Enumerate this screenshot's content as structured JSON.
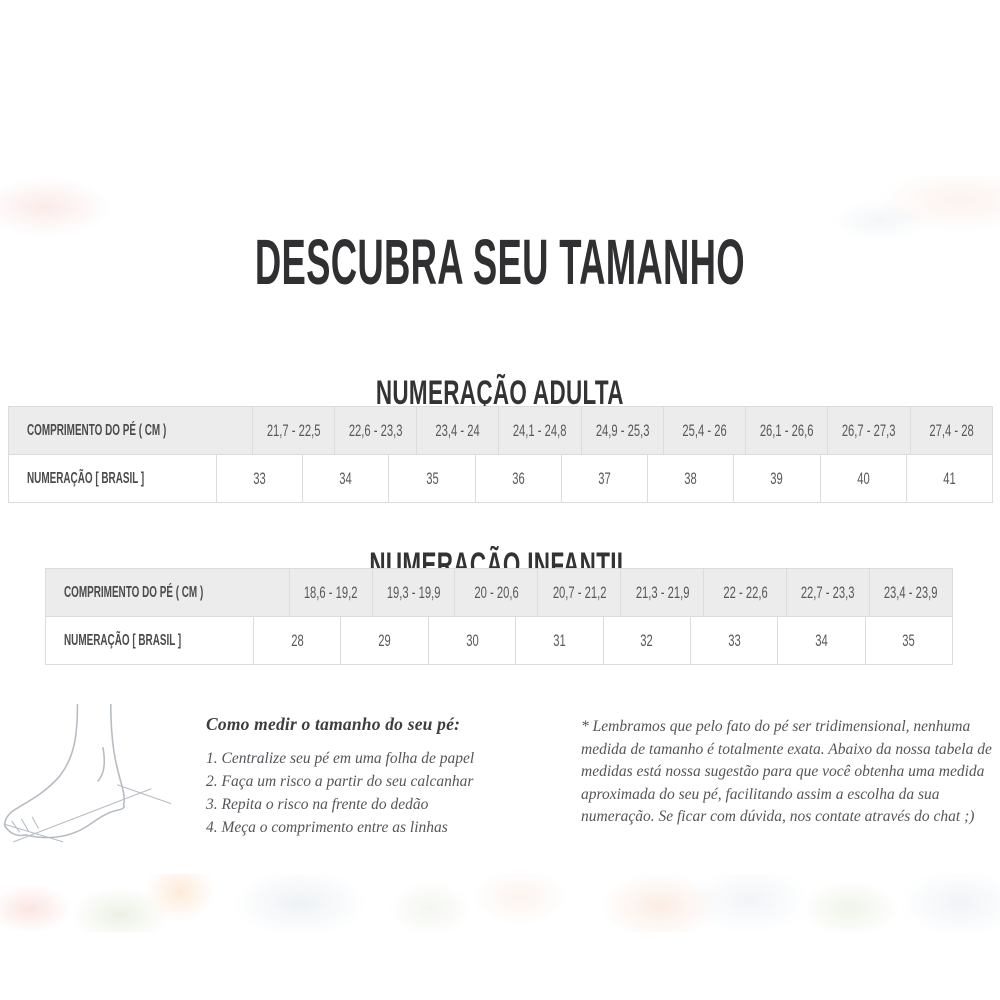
{
  "title": "DESCUBRA SEU TAMANHO",
  "adult": {
    "heading": "NUMERAÇÃO ADULTA",
    "row1_label": "COMPRIMENTO DO PÉ ( CM )",
    "row1_values": [
      "21,7 - 22,5",
      "22,6 - 23,3",
      "23,4 - 24",
      "24,1 - 24,8",
      "24,9 - 25,3",
      "25,4 - 26",
      "26,1 - 26,6",
      "26,7 - 27,3",
      "27,4 - 28"
    ],
    "row2_label": "NUMERAÇÃO [ BRASIL ]",
    "row2_values": [
      "33",
      "34",
      "35",
      "36",
      "37",
      "38",
      "39",
      "40",
      "41"
    ]
  },
  "kids": {
    "heading": "NUMERAÇÃO INFANTIL",
    "row1_label": "COMPRIMENTO DO PÉ ( CM )",
    "row1_values": [
      "18,6 - 19,2",
      "19,3 - 19,9",
      "20 - 20,6",
      "20,7 - 21,2",
      "21,3 - 21,9",
      "22 - 22,6",
      "22,7 - 23,3",
      "23,4 - 23,9"
    ],
    "row2_label": "NUMERAÇÃO [ BRASIL ]",
    "row2_values": [
      "28",
      "29",
      "30",
      "31",
      "32",
      "33",
      "34",
      "35"
    ]
  },
  "howto": {
    "heading": "Como medir o tamanho do seu pé:",
    "steps": [
      "1. Centralize seu pé em uma folha de papel",
      "2. Faça um risco a partir do seu calcanhar",
      "3. Repita o risco na frente do dedão",
      "4. Meça o comprimento entre as linhas"
    ]
  },
  "note": "* Lembramos que pelo fato do pé ser tridimensional, nenhuma medida de tamanho é totalmente exata. Abaixo da nossa tabela de medidas está nossa sugestão para que você obtenha uma medida aproximada do seu pé, facilitando assim a escolha da sua numeração. Se ficar com dúvida, nos contate através do chat ;)",
  "icons": {
    "foot_illustration": "foot-measurement-line-art"
  },
  "colors": {
    "header_row_bg": "#ececec",
    "table_border": "#dcdcdc",
    "title_text": "#303032",
    "label_text": "#4b4b4d",
    "value_text": "#58585a"
  }
}
